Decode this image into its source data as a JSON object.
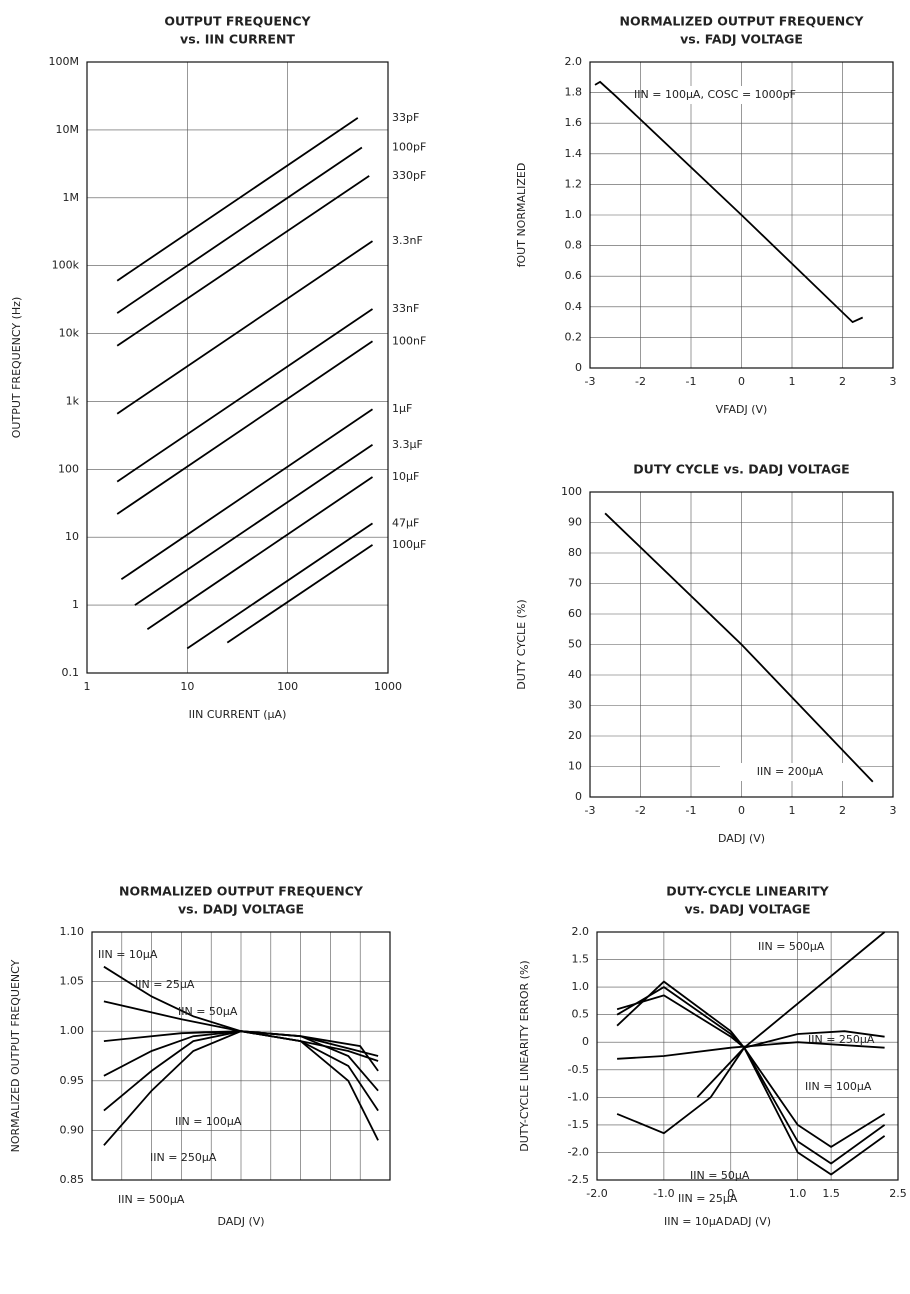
{
  "chart_data": [
    {
      "type": "line",
      "title": "OUTPUT FREQUENCY",
      "subtitle": "vs. IIN CURRENT",
      "x_label": "IIN CURRENT (µA)",
      "y_label": "OUTPUT FREQUENCY (Hz)",
      "xscale": "log",
      "yscale": "log",
      "grid": true,
      "color": "#000000",
      "xlim": [
        1,
        1000
      ],
      "xticks": [
        1,
        10,
        100,
        1000
      ],
      "ylim": [
        0.1,
        100000000
      ],
      "yticks": [
        0.1,
        1,
        10,
        100,
        {
          "value": 1000,
          "label": "1k"
        },
        {
          "value": 10000,
          "label": "10k"
        },
        {
          "value": 100000,
          "label": "100k"
        },
        {
          "value": 1000000,
          "label": "1M"
        },
        {
          "value": 10000000,
          "label": "10M"
        },
        {
          "value": 100000000,
          "label": "100M"
        }
      ],
      "series": [
        {
          "name": "33pF",
          "x": [
            2,
            500
          ],
          "values": [
            60000,
            15000000
          ]
        },
        {
          "name": "100pF",
          "x": [
            2,
            550
          ],
          "values": [
            20000,
            5500000
          ]
        },
        {
          "name": "330pF",
          "x": [
            2,
            650
          ],
          "values": [
            6600,
            2100000
          ]
        },
        {
          "name": "3.3nF",
          "x": [
            2,
            700
          ],
          "values": [
            660,
            230000
          ]
        },
        {
          "name": "33nF",
          "x": [
            2,
            700
          ],
          "values": [
            66,
            23000
          ]
        },
        {
          "name": "100nF",
          "x": [
            2,
            700
          ],
          "values": [
            22,
            7700
          ]
        },
        {
          "name": "1µF",
          "x": [
            2.2,
            700
          ],
          "values": [
            2.4,
            770
          ]
        },
        {
          "name": "3.3µF",
          "x": [
            3,
            700
          ],
          "values": [
            1,
            230
          ]
        },
        {
          "name": "10µF",
          "x": [
            4,
            700
          ],
          "values": [
            0.44,
            77
          ]
        },
        {
          "name": "47µF",
          "x": [
            10,
            700
          ],
          "values": [
            0.23,
            16
          ]
        },
        {
          "name": "100µF",
          "x": [
            25,
            700
          ],
          "values": [
            0.28,
            7.7
          ]
        }
      ]
    },
    {
      "type": "line",
      "title": "NORMALIZED OUTPUT FREQUENCY",
      "subtitle": "vs. FADJ VOLTAGE",
      "x_label": "VFADJ (V)",
      "y_label": "fOUT NORMALIZED",
      "annotation": "IIN = 100µA, COSC = 1000pF",
      "grid": true,
      "color": "#000000",
      "xlim": [
        -3,
        3
      ],
      "xticks": [
        -3,
        -2,
        -1,
        0,
        1,
        2,
        3
      ],
      "ylim": [
        0,
        2
      ],
      "yticks": [
        0,
        0.2,
        0.4,
        0.6,
        0.8,
        {
          "value": 1,
          "label": "1.0"
        },
        1.2,
        1.4,
        1.6,
        1.8,
        {
          "value": 2,
          "label": "2.0"
        }
      ],
      "series": [
        {
          "name": null,
          "x": [
            -2.9,
            -2.8,
            -2.5,
            0,
            2.2,
            2.4
          ],
          "values": [
            1.85,
            1.87,
            1.78,
            1.0,
            0.3,
            0.33
          ]
        }
      ]
    },
    {
      "type": "line",
      "title": "DUTY CYCLE vs. DADJ VOLTAGE",
      "x_label": "DADJ (V)",
      "y_label": "DUTY CYCLE (%)",
      "annotation": "IIN = 200µA",
      "grid": true,
      "color": "#000000",
      "xlim": [
        -3,
        3
      ],
      "xticks": [
        -3,
        -2,
        -1,
        0,
        1,
        2,
        3
      ],
      "ylim": [
        0,
        100
      ],
      "yticks": [
        0,
        10,
        20,
        30,
        40,
        50,
        60,
        70,
        80,
        90,
        100
      ],
      "series": [
        {
          "name": null,
          "x": [
            -2.7,
            0,
            2.6
          ],
          "values": [
            93,
            50,
            5
          ]
        }
      ]
    },
    {
      "type": "line",
      "title": "NORMALIZED OUTPUT FREQUENCY",
      "subtitle": "vs. DADJ VOLTAGE",
      "x_label": "DADJ (V)",
      "y_label": "NORMALIZED OUTPUT FREQUENCY",
      "grid": true,
      "color": "#000000",
      "show_xtick_labels": false,
      "xlim": [
        -2.5,
        2.5
      ],
      "xticks": [
        -2.5,
        -2,
        -1.5,
        -1,
        -0.5,
        0,
        0.5,
        1,
        1.5,
        2,
        2.5
      ],
      "ylim": [
        0.85,
        1.1
      ],
      "yticks": [
        0.85,
        {
          "value": 0.9,
          "label": "0.90"
        },
        0.95,
        {
          "value": 1,
          "label": "1.00"
        },
        1.05,
        {
          "value": 1.1,
          "label": "1.10"
        }
      ],
      "series": [
        {
          "name": "IIN = 10µA",
          "x": [
            -2.3,
            -1.5,
            -0.8,
            0,
            1,
            1.8,
            2.3
          ],
          "values": [
            1.065,
            1.035,
            1.015,
            1.0,
            0.99,
            0.98,
            0.97
          ]
        },
        {
          "name": "IIN = 25µA",
          "x": [
            -2.3,
            -1,
            0,
            1,
            2.3
          ],
          "values": [
            1.03,
            1.012,
            1.0,
            0.995,
            0.975
          ]
        },
        {
          "name": "IIN = 50µA",
          "x": [
            -2.3,
            -1,
            0,
            1,
            2,
            2.3
          ],
          "values": [
            0.99,
            0.998,
            1.0,
            0.995,
            0.985,
            0.96
          ]
        },
        {
          "name": "IIN = 100µA",
          "x": [
            -2.3,
            -1.5,
            -0.8,
            0,
            1,
            1.8,
            2.3
          ],
          "values": [
            0.955,
            0.98,
            0.995,
            1.0,
            0.995,
            0.975,
            0.94
          ]
        },
        {
          "name": "IIN = 250µA",
          "x": [
            -2.3,
            -1.5,
            -0.8,
            0,
            1,
            1.8,
            2.3
          ],
          "values": [
            0.92,
            0.96,
            0.99,
            1.0,
            0.99,
            0.965,
            0.92
          ]
        },
        {
          "name": "IIN = 500µA",
          "x": [
            -2.3,
            -1.5,
            -0.8,
            0,
            1,
            1.8,
            2.3
          ],
          "values": [
            0.885,
            0.94,
            0.98,
            1.0,
            0.99,
            0.95,
            0.89
          ]
        }
      ]
    },
    {
      "type": "line",
      "title": "DUTY-CYCLE LINEARITY",
      "subtitle": "vs. DADJ VOLTAGE",
      "x_label": "DADJ (V)",
      "y_label": "DUTY-CYCLE LINEARITY ERROR (%)",
      "grid": true,
      "color": "#000000",
      "xlim": [
        -2,
        2.5
      ],
      "xticks": [
        {
          "value": -2,
          "label": "-2.0"
        },
        {
          "value": -1,
          "label": "-1.0"
        },
        0,
        {
          "value": 1,
          "label": "1.0"
        },
        1.5,
        2.5
      ],
      "ylim": [
        -2.5,
        2
      ],
      "yticks": [
        -2.5,
        {
          "value": -2,
          "label": "-2.0"
        },
        -1.5,
        {
          "value": -1,
          "label": "-1.0"
        },
        -0.5,
        0,
        0.5,
        {
          "value": 1,
          "label": "1.0"
        },
        1.5,
        {
          "value": 2,
          "label": "2.0"
        }
      ],
      "series": [
        {
          "name": "IIN = 500µA",
          "x": [
            -0.5,
            0.2,
            2.3
          ],
          "values": [
            -1.0,
            -0.1,
            2.0
          ]
        },
        {
          "name": "IIN = 250µA",
          "x": [
            -1.7,
            -1,
            -0.3,
            0.2,
            1,
            1.7,
            2.3
          ],
          "values": [
            -1.3,
            -1.65,
            -1.0,
            -0.1,
            0.15,
            0.2,
            0.1
          ]
        },
        {
          "name": "IIN = 100µA",
          "x": [
            -1.7,
            -1,
            0,
            1,
            2.3
          ],
          "values": [
            -0.3,
            -0.25,
            -0.1,
            0,
            -0.1
          ]
        },
        {
          "name": "IIN = 50µA",
          "x": [
            -1.7,
            -1,
            0,
            0.2,
            1,
            1.5,
            2.3
          ],
          "values": [
            0.6,
            0.85,
            0.1,
            -0.1,
            -1.5,
            -1.9,
            -1.3
          ]
        },
        {
          "name": "IIN = 25µA",
          "x": [
            -1.7,
            -1,
            0,
            0.2,
            1,
            1.5,
            2.3
          ],
          "values": [
            0.5,
            1.0,
            0.15,
            -0.1,
            -1.8,
            -2.2,
            -1.5
          ]
        },
        {
          "name": "IIN = 10µA",
          "x": [
            -1.7,
            -1,
            0,
            0.2,
            1,
            1.5,
            2.3
          ],
          "values": [
            0.3,
            1.1,
            0.2,
            -0.1,
            -2.0,
            -2.4,
            -1.7
          ]
        }
      ]
    }
  ]
}
